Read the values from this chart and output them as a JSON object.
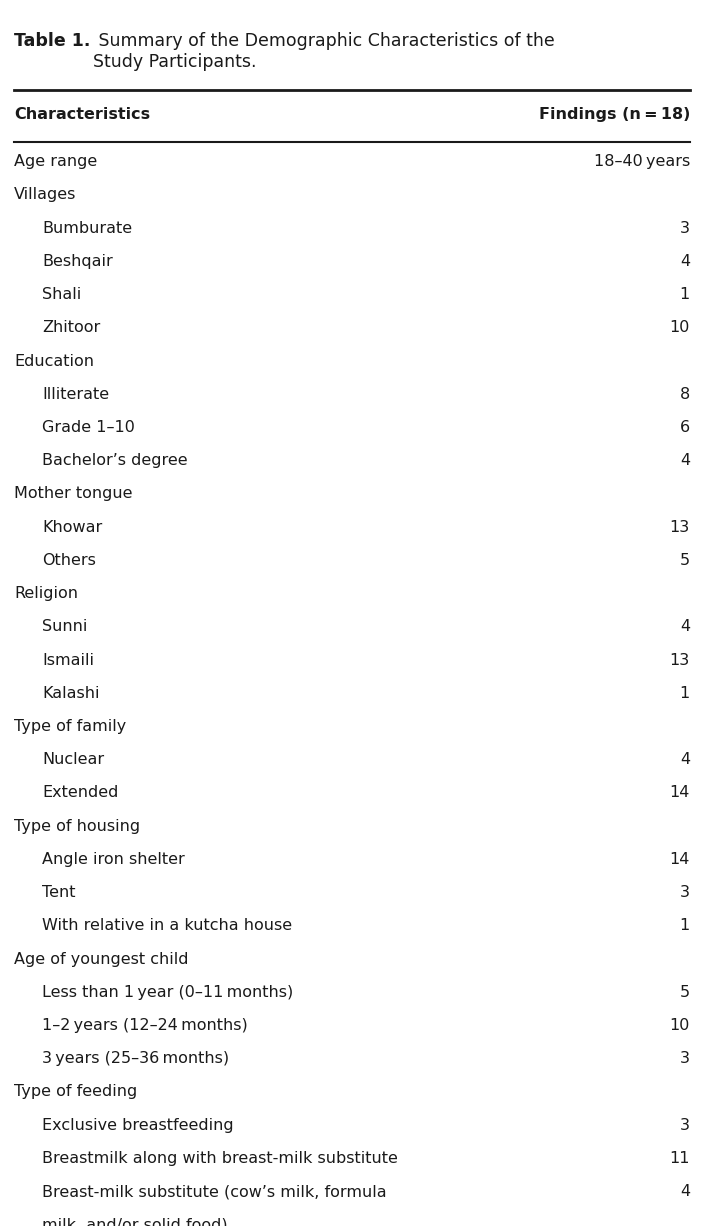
{
  "title_bold": "Table 1.",
  "title_rest": " Summary of the Demographic Characteristics of the\nStudy Participants.",
  "col_header_left": "Characteristics",
  "col_header_right": "Findings (n = 18)",
  "rows": [
    {
      "label": "Age range",
      "value": "18–40 years",
      "indent": 0
    },
    {
      "label": "Villages",
      "value": "",
      "indent": 0
    },
    {
      "label": "Bumburate",
      "value": "3",
      "indent": 1
    },
    {
      "label": "Beshqair",
      "value": "4",
      "indent": 1
    },
    {
      "label": "Shali",
      "value": "1",
      "indent": 1
    },
    {
      "label": "Zhitoor",
      "value": "10",
      "indent": 1
    },
    {
      "label": "Education",
      "value": "",
      "indent": 0
    },
    {
      "label": "Illiterate",
      "value": "8",
      "indent": 1
    },
    {
      "label": "Grade 1–10",
      "value": "6",
      "indent": 1
    },
    {
      "label": "Bachelor’s degree",
      "value": "4",
      "indent": 1
    },
    {
      "label": "Mother tongue",
      "value": "",
      "indent": 0
    },
    {
      "label": "Khowar",
      "value": "13",
      "indent": 1
    },
    {
      "label": "Others",
      "value": "5",
      "indent": 1
    },
    {
      "label": "Religion",
      "value": "",
      "indent": 0
    },
    {
      "label": "Sunni",
      "value": "4",
      "indent": 1
    },
    {
      "label": "Ismaili",
      "value": "13",
      "indent": 1
    },
    {
      "label": "Kalashi",
      "value": "1",
      "indent": 1
    },
    {
      "label": "Type of family",
      "value": "",
      "indent": 0
    },
    {
      "label": "Nuclear",
      "value": "4",
      "indent": 1
    },
    {
      "label": "Extended",
      "value": "14",
      "indent": 1
    },
    {
      "label": "Type of housing",
      "value": "",
      "indent": 0
    },
    {
      "label": "Angle iron shelter",
      "value": "14",
      "indent": 1
    },
    {
      "label": "Tent",
      "value": "3",
      "indent": 1
    },
    {
      "label": "With relative in a kutcha house",
      "value": "1",
      "indent": 1
    },
    {
      "label": "Age of youngest child",
      "value": "",
      "indent": 0
    },
    {
      "label": "Less than 1 year (0–11 months)",
      "value": "5",
      "indent": 1
    },
    {
      "label": "1–2 years (12–24 months)",
      "value": "10",
      "indent": 1
    },
    {
      "label": "3 years (25–36 months)",
      "value": "3",
      "indent": 1
    },
    {
      "label": "Type of feeding",
      "value": "",
      "indent": 0
    },
    {
      "label": "Exclusive breastfeeding",
      "value": "3",
      "indent": 1
    },
    {
      "label": "Breastmilk along with breast-milk substitute",
      "value": "11",
      "indent": 1
    },
    {
      "label": "Breast-milk substitute (cow’s milk, formula\nmilk, and/or solid food)",
      "value": "4",
      "indent": 1
    }
  ],
  "bg_color": "#ffffff",
  "text_color": "#1a1a1a",
  "font_family": "DejaVu Sans",
  "font_size": 11.5,
  "header_font_size": 11.5,
  "title_font_size": 12.5,
  "indent_amount": 0.04
}
